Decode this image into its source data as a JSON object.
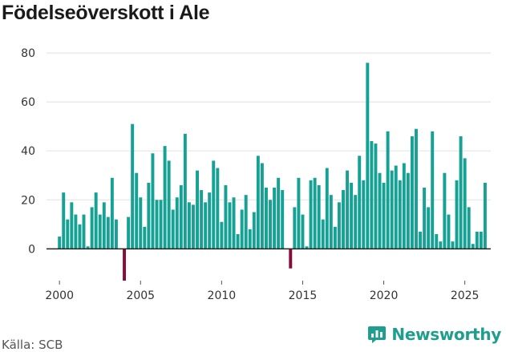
{
  "colors": {
    "positive": "#16a195",
    "negative": "#8b0a3c",
    "grid": "#e6e6e6",
    "axis": "#222222",
    "brand": "#1f9e8f"
  },
  "footer": {
    "source": "Källa: SCB",
    "brand_name": "Newsworthy",
    "brand_icon": "bar-chart-speech-bubble-icon"
  },
  "chart_data": {
    "type": "bar",
    "title": "Födelseöverskott i Ale",
    "xlabel": "",
    "ylabel": "",
    "interval": "monthly-quarterly",
    "x_start": 2000.0,
    "x_step": 0.25,
    "xlim": [
      1999.2,
      2026.6
    ],
    "ylim": [
      -13,
      82
    ],
    "yticks": [
      0,
      20,
      40,
      60,
      80
    ],
    "xticks": [
      2000,
      2005,
      2010,
      2015,
      2020,
      2025
    ],
    "grid": true,
    "values": [
      5,
      23,
      12,
      19,
      14,
      10,
      14,
      1,
      17,
      23,
      14,
      19,
      13,
      29,
      12,
      0,
      -13,
      13,
      51,
      31,
      21,
      9,
      27,
      39,
      20,
      20,
      42,
      36,
      16,
      21,
      26,
      47,
      19,
      18,
      32,
      24,
      19,
      23,
      36,
      33,
      11,
      26,
      19,
      21,
      6,
      16,
      22,
      8,
      15,
      38,
      35,
      25,
      20,
      25,
      29,
      24,
      0,
      -8,
      17,
      29,
      14,
      1,
      28,
      29,
      26,
      12,
      33,
      22,
      9,
      19,
      24,
      32,
      27,
      22,
      38,
      28,
      76,
      44,
      43,
      31,
      27,
      48,
      32,
      34,
      28,
      35,
      31,
      46,
      49,
      7,
      25,
      17,
      48,
      6,
      3,
      31,
      14,
      3,
      28,
      46,
      37,
      17,
      2,
      7,
      7,
      27
    ]
  }
}
